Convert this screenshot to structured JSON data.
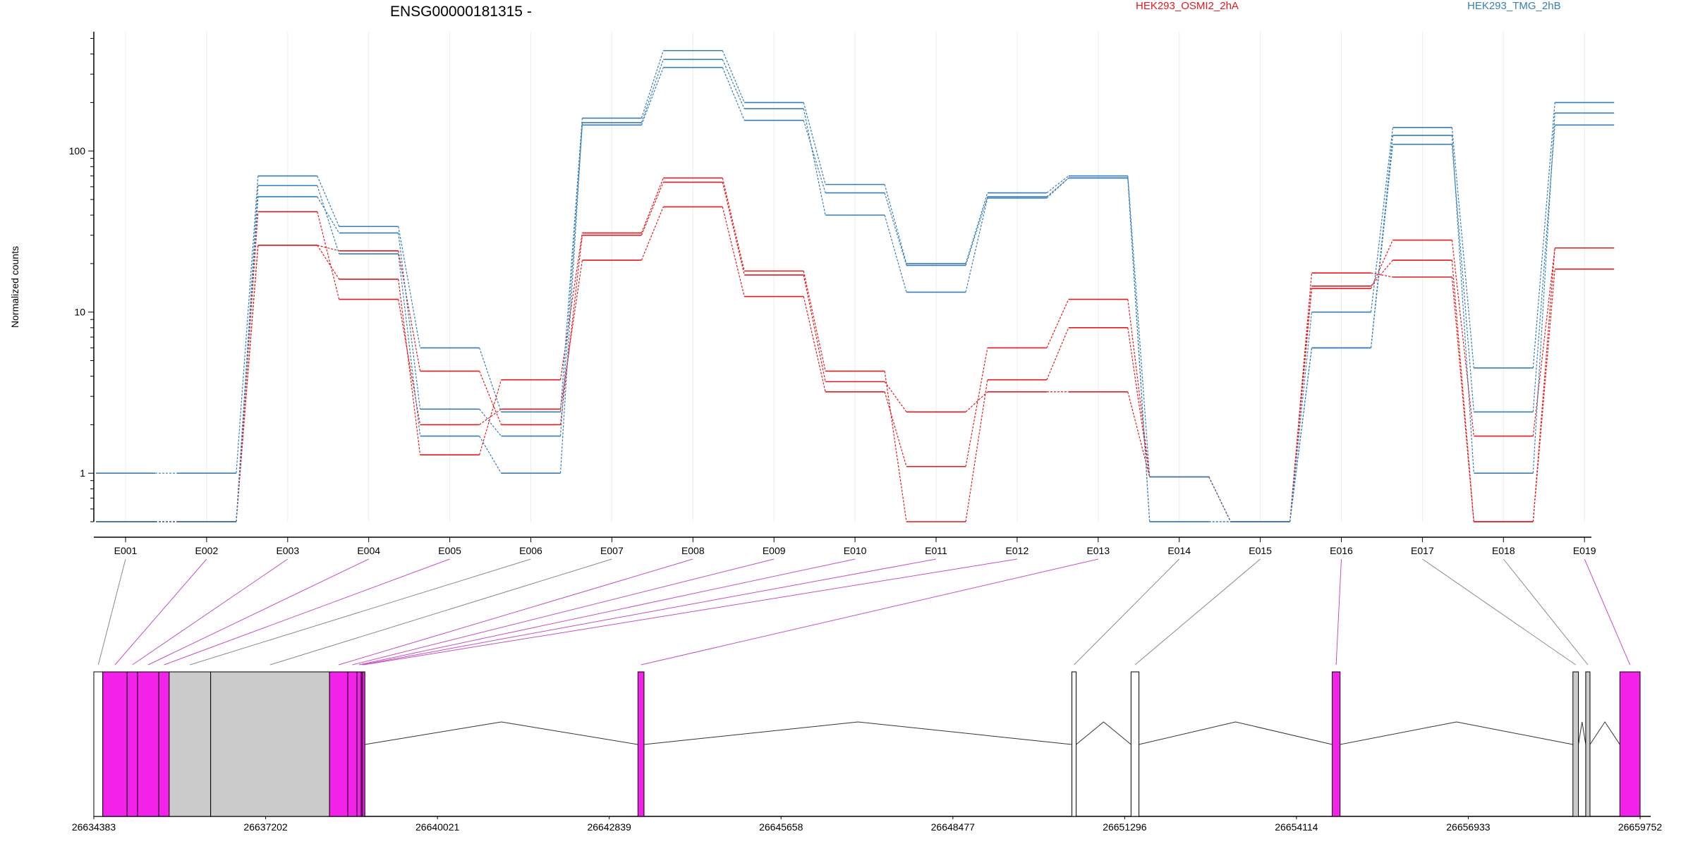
{
  "chart_data": {
    "type": "line",
    "title": "ENSG00000181315 -",
    "ylabel": "Normalized counts",
    "yscale": "log",
    "ylim": [
      0.5,
      550
    ],
    "yticks": [
      1,
      10,
      100
    ],
    "ytick_labels": [
      "1",
      "10",
      "100"
    ],
    "categories": [
      "E001",
      "E002",
      "E003",
      "E004",
      "E005",
      "E006",
      "E007",
      "E008",
      "E009",
      "E010",
      "E011",
      "E012",
      "E013",
      "E014",
      "E015",
      "E016",
      "E017",
      "E018",
      "E019"
    ],
    "exon_colors": [
      "white",
      "magenta",
      "magenta",
      "magenta",
      "magenta",
      "gray",
      "gray",
      "magenta",
      "magenta",
      "magenta",
      "magenta",
      "magenta",
      "magenta",
      "white",
      "white",
      "magenta",
      "gray",
      "gray",
      "magenta"
    ],
    "conditions": [
      {
        "name": "HEK293_OSMI2_2hA",
        "color": "#e41a1c"
      },
      {
        "name": "HEK293_TMG_2hB",
        "color": "#377eb8"
      }
    ],
    "series": [
      {
        "condition": 0,
        "values": [
          0.5,
          0.5,
          26,
          16,
          1.3,
          3.8,
          31,
          68,
          18,
          4.3,
          0.5,
          3.8,
          8,
          0.95,
          0.5,
          14,
          28,
          1.7,
          25
        ]
      },
      {
        "condition": 0,
        "values": [
          0.5,
          0.5,
          42,
          12,
          2,
          2.5,
          21,
          45,
          12.5,
          3.2,
          1.1,
          6,
          12,
          0.95,
          0.5,
          17.5,
          16.5,
          0.5,
          25
        ]
      },
      {
        "condition": 0,
        "values": [
          0.5,
          0.5,
          26,
          24,
          4.3,
          2,
          30,
          64,
          17,
          3.7,
          2.4,
          3.2,
          3.2,
          0.95,
          0.5,
          14.5,
          21,
          0.5,
          18.5
        ]
      },
      {
        "condition": 1,
        "values": [
          1,
          1,
          70,
          34,
          6,
          2.4,
          160,
          420,
          200,
          62,
          20,
          55,
          70,
          0.95,
          0.5,
          10,
          140,
          4.5,
          200
        ]
      },
      {
        "condition": 1,
        "values": [
          0.5,
          0.5,
          52,
          31,
          2.5,
          1.7,
          145,
          330,
          155,
          55,
          19.5,
          52,
          68,
          0.5,
          0.5,
          6,
          110,
          2.4,
          145
        ]
      },
      {
        "condition": 1,
        "values": [
          0.5,
          0.5,
          61,
          23,
          1.7,
          1,
          150,
          370,
          183,
          40,
          13.3,
          51,
          68,
          0.5,
          0.5,
          6,
          125,
          1,
          172
        ]
      }
    ],
    "gene_model": {
      "xlim": [
        26634383,
        26659752
      ],
      "tick_labels": [
        "26634383",
        "26637202",
        "26640021",
        "26642839",
        "26645658",
        "26648477",
        "26651296",
        "26654114",
        "26656933",
        "26659752"
      ],
      "colors": {
        "magenta": "#f222e8",
        "gray": "#cbcbcb",
        "white": "#ffffff"
      },
      "exons": [
        {
          "id": "E001",
          "start": 26634383,
          "end": 26634530,
          "color": "white"
        },
        {
          "id": "E002",
          "start": 26634530,
          "end": 26634930,
          "color": "magenta"
        },
        {
          "id": "E003",
          "start": 26634930,
          "end": 26635100,
          "color": "magenta"
        },
        {
          "id": "E004",
          "start": 26635100,
          "end": 26635450,
          "color": "magenta"
        },
        {
          "id": "E005",
          "start": 26635450,
          "end": 26635620,
          "color": "magenta"
        },
        {
          "id": "E006",
          "start": 26635620,
          "end": 26636300,
          "color": "gray"
        },
        {
          "id": "E007",
          "start": 26636300,
          "end": 26638250,
          "color": "gray"
        },
        {
          "id": "E008",
          "start": 26638250,
          "end": 26638550,
          "color": "magenta"
        },
        {
          "id": "E009",
          "start": 26638550,
          "end": 26638700,
          "color": "magenta"
        },
        {
          "id": "E010",
          "start": 26638700,
          "end": 26638770,
          "color": "magenta"
        },
        {
          "id": "E011",
          "start": 26638770,
          "end": 26638790,
          "color": "magenta"
        },
        {
          "id": "E012",
          "start": 26638790,
          "end": 26638830,
          "color": "magenta"
        },
        {
          "id": "E013",
          "start": 26643310,
          "end": 26643410,
          "color": "magenta"
        },
        {
          "id": "E014",
          "start": 26650430,
          "end": 26650500,
          "color": "white"
        },
        {
          "id": "E015",
          "start": 26651400,
          "end": 26651530,
          "color": "white"
        },
        {
          "id": "E016",
          "start": 26654700,
          "end": 26654830,
          "color": "magenta"
        },
        {
          "id": "E017",
          "start": 26658650,
          "end": 26658740,
          "color": "gray"
        },
        {
          "id": "E018",
          "start": 26658860,
          "end": 26658930,
          "color": "gray"
        },
        {
          "id": "E019",
          "start": 26659420,
          "end": 26659752,
          "color": "magenta"
        }
      ]
    }
  }
}
